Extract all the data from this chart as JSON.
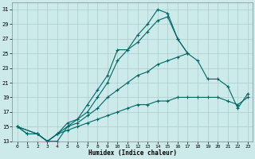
{
  "xlabel": "Humidex (Indice chaleur)",
  "bg_color": "#cceaea",
  "grid_color": "#aacccc",
  "line_color": "#006666",
  "xlim_min": -0.5,
  "xlim_max": 23.5,
  "ylim_min": 13,
  "ylim_max": 32,
  "xticks": [
    0,
    1,
    2,
    3,
    4,
    5,
    6,
    7,
    8,
    9,
    10,
    11,
    12,
    13,
    14,
    15,
    16,
    17,
    18,
    19,
    20,
    21,
    22,
    23
  ],
  "yticks": [
    13,
    15,
    17,
    19,
    21,
    23,
    25,
    27,
    29,
    31
  ],
  "series": [
    {
      "x": [
        0,
        1,
        2,
        3,
        4,
        5,
        6,
        7,
        8,
        9,
        10,
        11,
        12,
        13,
        14,
        15,
        16,
        17
      ],
      "y": [
        15,
        14,
        14,
        13,
        13,
        15,
        16,
        18,
        20,
        22,
        25.5,
        25.5,
        27.5,
        29,
        31,
        30.5,
        27,
        25
      ]
    },
    {
      "x": [
        0,
        1,
        2,
        3,
        4,
        5,
        6,
        7,
        8,
        9,
        10,
        11,
        12,
        13,
        14,
        15,
        16,
        17
      ],
      "y": [
        15,
        14,
        14,
        13,
        14,
        15.5,
        16,
        17,
        19,
        21,
        24,
        25.5,
        26.5,
        28,
        29.5,
        30,
        27,
        25
      ]
    },
    {
      "x": [
        0,
        2,
        3,
        4,
        5,
        6,
        7,
        8,
        9,
        10,
        11,
        12,
        13,
        14,
        15,
        16,
        17,
        18,
        19,
        20,
        21,
        22,
        23
      ],
      "y": [
        15,
        14,
        13,
        14,
        15,
        15.5,
        16.5,
        17.5,
        19,
        20,
        21,
        22,
        22.5,
        23.5,
        24,
        24.5,
        25,
        24,
        21.5,
        21.5,
        20.5,
        17.5,
        19.5
      ]
    },
    {
      "x": [
        0,
        2,
        3,
        4,
        5,
        6,
        7,
        8,
        9,
        10,
        11,
        12,
        13,
        14,
        15,
        16,
        17,
        18,
        19,
        20,
        21,
        22,
        23
      ],
      "y": [
        15,
        14,
        13,
        14,
        14.5,
        15,
        15.5,
        16,
        16.5,
        17,
        17.5,
        18,
        18,
        18.5,
        18.5,
        19,
        19,
        19,
        19,
        19,
        18.5,
        18,
        19
      ]
    }
  ]
}
